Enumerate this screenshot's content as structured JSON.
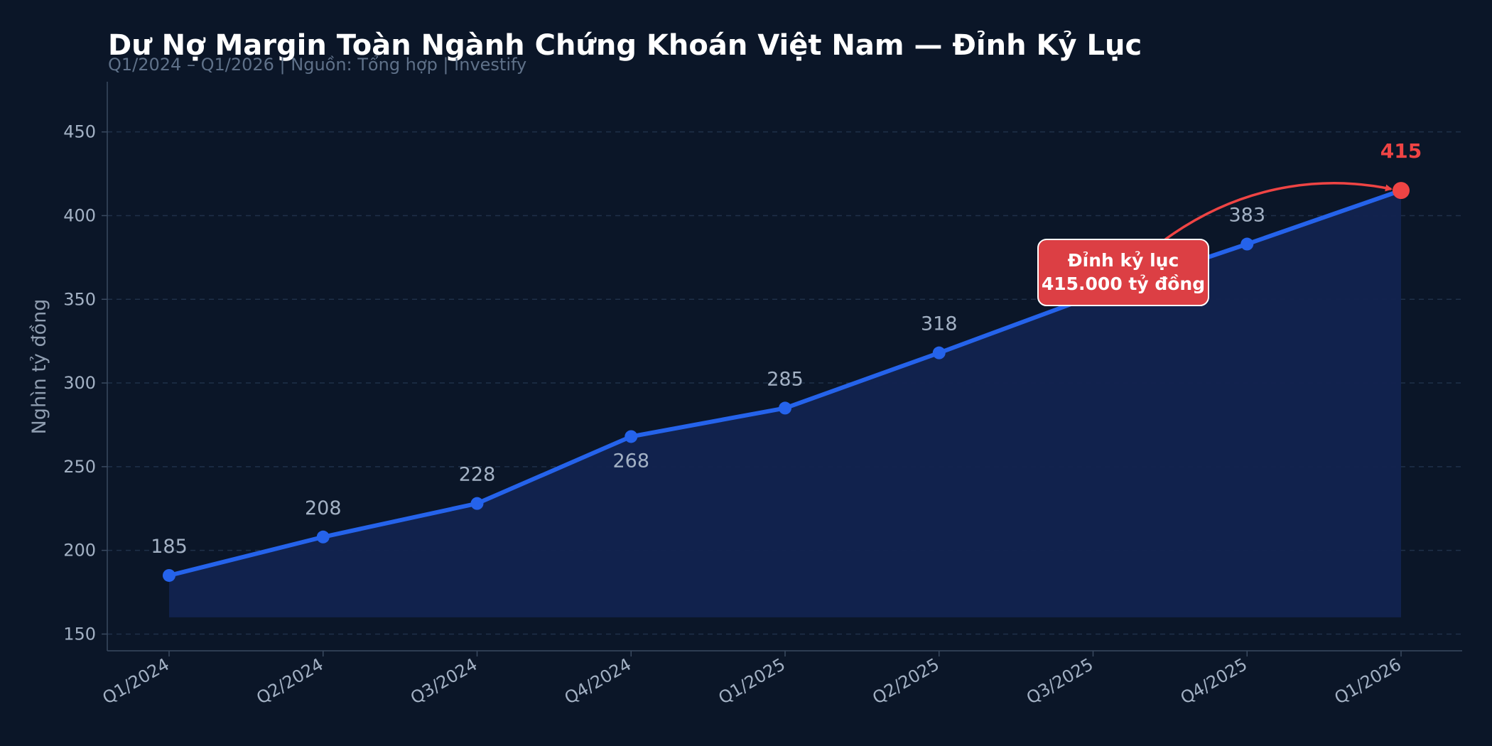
{
  "title": "Dư Nợ Margin Toàn Ngành Chứng Khoán Việt Nam — Đỉnh Kỷ Lục",
  "subtitle": "Q1/2024 – Q1/2026  |  Nguồn: Tổng hợp  |  Investify",
  "colors": {
    "background": "#0b1628",
    "line": "#2563eb",
    "area": "#12234f",
    "peak": "#ef4444",
    "grid": "#1f3049",
    "annotation_bg": "#dc3f44"
  },
  "chart_data": {
    "type": "line",
    "title": "Dư Nợ Margin Toàn Ngành Chứng Khoán Việt Nam — Đỉnh Kỷ Lục",
    "subtitle": "Q1/2024 – Q1/2026  |  Nguồn: Tổng hợp  |  Investify",
    "xlabel": "",
    "ylabel": "Nghìn tỷ đồng",
    "categories": [
      "Q1/2024",
      "Q2/2024",
      "Q3/2024",
      "Q4/2024",
      "Q1/2025",
      "Q2/2025",
      "Q3/2025",
      "Q4/2025",
      "Q1/2026"
    ],
    "series": [
      {
        "values": [
          185,
          208,
          228,
          268,
          285,
          318,
          352,
          383,
          415
        ]
      }
    ],
    "data_labels": [
      "185",
      "208",
      "228",
      "268",
      "285",
      "318",
      "",
      "383",
      "415"
    ],
    "ylim": [
      140,
      480
    ],
    "yticks": [
      150,
      200,
      250,
      300,
      350,
      400,
      450
    ],
    "grid": true,
    "area_fill_base": 160,
    "annotation": {
      "line1": "Đỉnh kỷ lục",
      "line2": "415.000 tỷ đồng",
      "target_category": "Q1/2026"
    }
  }
}
